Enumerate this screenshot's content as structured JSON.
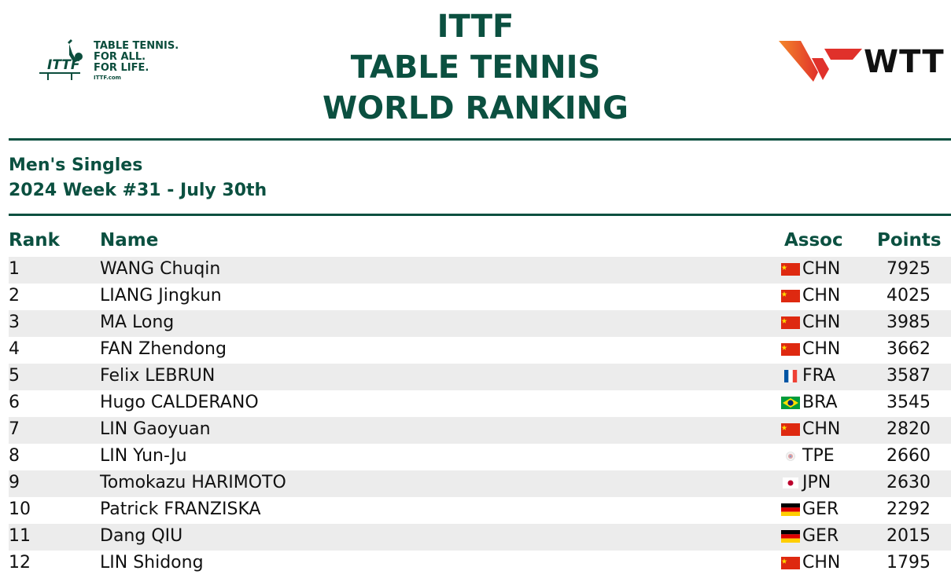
{
  "header": {
    "ittf_slogan": "TABLE TENNIS.\nFOR ALL.\nFOR LIFE.",
    "ittf_url": "ITTF.com",
    "ittf_mark": "ITTF",
    "title_line1": "ITTF",
    "title_line2": "TABLE TENNIS",
    "title_line3": "WORLD RANKING",
    "wtt_text": "WTT"
  },
  "subtitle": {
    "category": "Men's Singles",
    "week": "2024 Week #31 - July 30th"
  },
  "table": {
    "columns": {
      "rank": "Rank",
      "name": "Name",
      "assoc": "Assoc",
      "points": "Points"
    },
    "rows": [
      {
        "rank": "1",
        "name": "WANG Chuqin",
        "assoc": "CHN",
        "points": "7925",
        "flag": "chn-flag-icon"
      },
      {
        "rank": "2",
        "name": "LIANG Jingkun",
        "assoc": "CHN",
        "points": "4025",
        "flag": "chn-flag-icon"
      },
      {
        "rank": "3",
        "name": "MA Long",
        "assoc": "CHN",
        "points": "3985",
        "flag": "chn-flag-icon"
      },
      {
        "rank": "4",
        "name": "FAN Zhendong",
        "assoc": "CHN",
        "points": "3662",
        "flag": "chn-flag-icon"
      },
      {
        "rank": "5",
        "name": "Felix LEBRUN",
        "assoc": "FRA",
        "points": "3587",
        "flag": "fra-flag-icon"
      },
      {
        "rank": "6",
        "name": "Hugo CALDERANO",
        "assoc": "BRA",
        "points": "3545",
        "flag": "bra-flag-icon"
      },
      {
        "rank": "7",
        "name": "LIN Gaoyuan",
        "assoc": "CHN",
        "points": "2820",
        "flag": "chn-flag-icon"
      },
      {
        "rank": "8",
        "name": "LIN Yun-Ju",
        "assoc": "TPE",
        "points": "2660",
        "flag": "tpe-flag-icon"
      },
      {
        "rank": "9",
        "name": "Tomokazu HARIMOTO",
        "assoc": "JPN",
        "points": "2630",
        "flag": "jpn-flag-icon"
      },
      {
        "rank": "10",
        "name": "Patrick FRANZISKA",
        "assoc": "GER",
        "points": "2292",
        "flag": "ger-flag-icon"
      },
      {
        "rank": "11",
        "name": "Dang QIU",
        "assoc": "GER",
        "points": "2015",
        "flag": "ger-flag-icon"
      },
      {
        "rank": "12",
        "name": "LIN Shidong",
        "assoc": "CHN",
        "points": "1795",
        "flag": "chn-flag-icon"
      }
    ]
  },
  "colors": {
    "brand_green": "#0b5040",
    "row_shade": "#ececec",
    "wtt_red": "#e0312b",
    "wtt_orange": "#f4872a"
  }
}
